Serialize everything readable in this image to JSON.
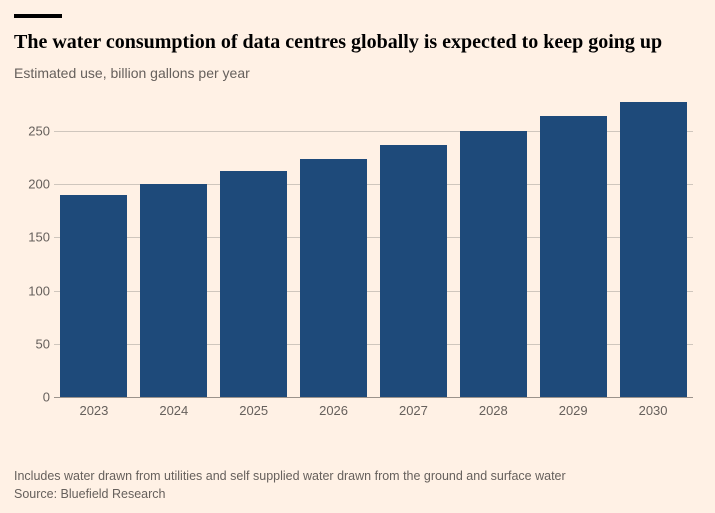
{
  "page": {
    "background_color": "#fff1e5",
    "text_color": "#000000",
    "muted_text_color": "#66605c",
    "rule_color": "#000000"
  },
  "header": {
    "title": "The water consumption of data centres globally is expected to keep going up",
    "subtitle": "Estimated use, billion gallons per year",
    "title_fontsize": 20,
    "subtitle_fontsize": 14
  },
  "chart": {
    "type": "bar",
    "categories": [
      "2023",
      "2024",
      "2025",
      "2026",
      "2027",
      "2028",
      "2029",
      "2030"
    ],
    "values": [
      190,
      200,
      212,
      224,
      237,
      250,
      264,
      277
    ],
    "bar_color": "#1e4a7a",
    "grid_color": "#cfc6bd",
    "baseline_color": "#9b938c",
    "ylim": [
      0,
      280
    ],
    "ytick_step": 50,
    "yticks": [
      0,
      50,
      100,
      150,
      200,
      250
    ],
    "bar_width_ratio": 0.84,
    "axis_label_color": "#66605c",
    "axis_label_fontsize": 13
  },
  "footer": {
    "footnote": "Includes water drawn from utilities and self supplied water drawn from the ground and surface water",
    "source": "Source: Bluefield Research"
  }
}
